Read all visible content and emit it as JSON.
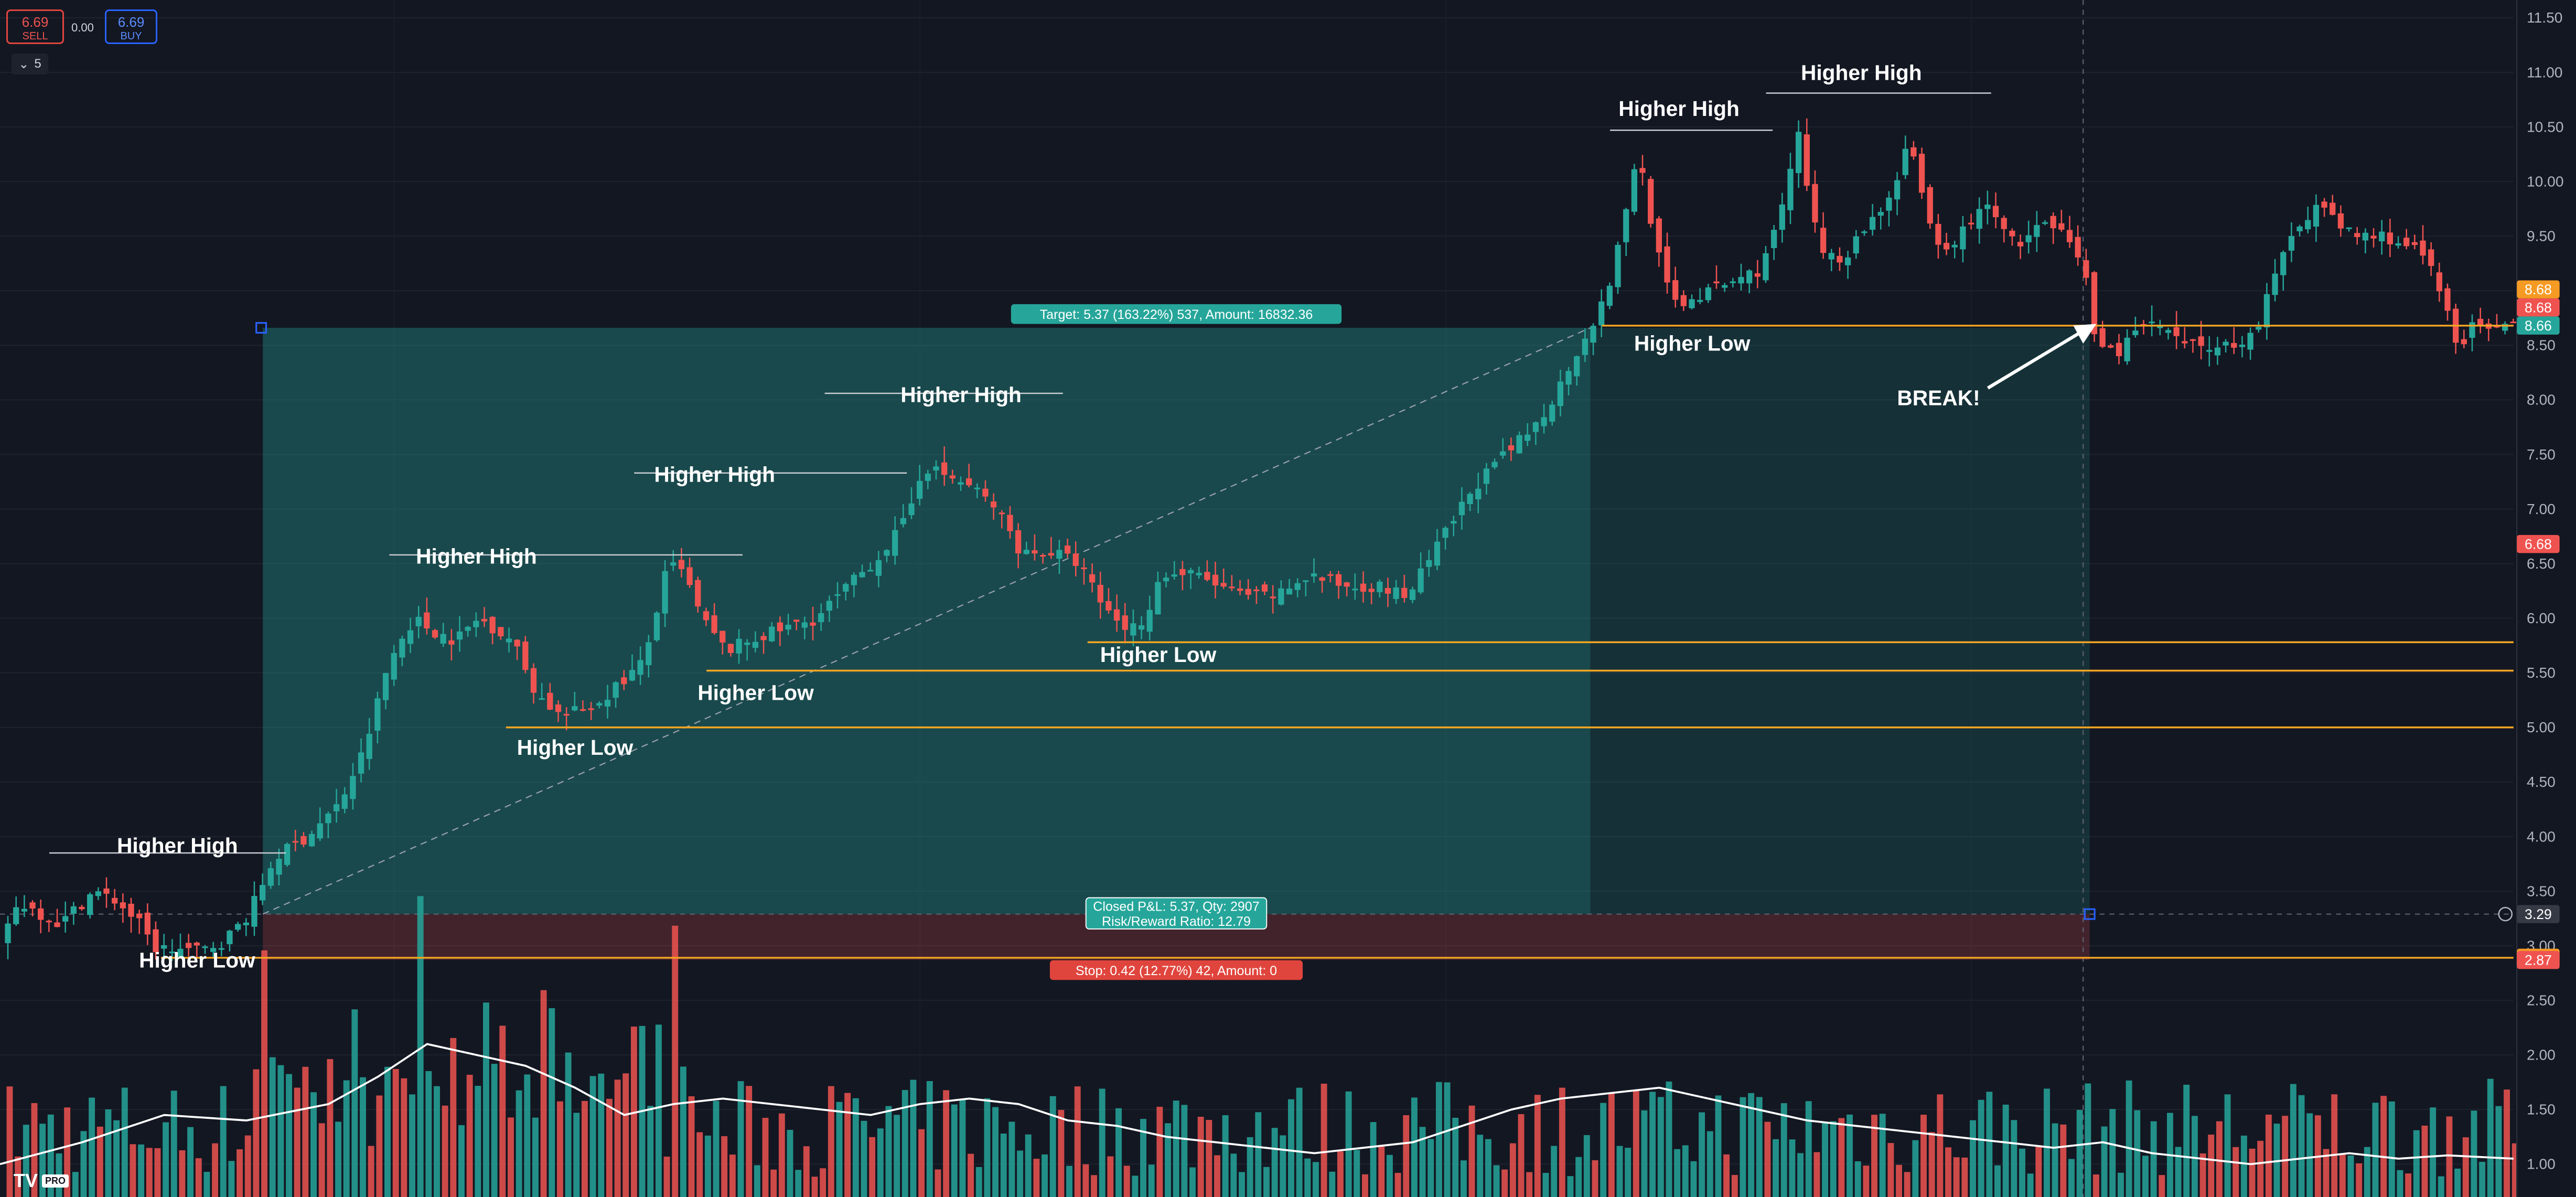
{
  "trading": {
    "sell_price": "6.69",
    "sell_label": "SELL",
    "buy_price": "6.69",
    "buy_label": "BUY",
    "spread": "0.00",
    "indicator_count": "5"
  },
  "logo_text": "TV",
  "logo_badge": "PRO",
  "colors": {
    "up": "#26a69a",
    "down": "#ef5350",
    "target_zone": "#26a69a",
    "stop_zone": "#ef5350",
    "level_line": "#f5a623",
    "background": "#131722"
  },
  "chart_data": {
    "type": "candlestick",
    "title": "",
    "xlabel": "",
    "ylabel": "",
    "ylim": [
      0.85,
      11.55
    ],
    "y_axis_ticks": [
      1.0,
      1.5,
      2.0,
      2.5,
      3.0,
      3.5,
      4.0,
      4.5,
      5.0,
      5.5,
      6.0,
      6.5,
      7.0,
      7.5,
      8.0,
      8.5,
      9.0,
      9.5,
      10.0,
      10.5,
      11.0,
      11.5
    ],
    "y_axis_tick_labels": [
      "1.00",
      "1.50",
      "2.00",
      "2.50",
      "3.00",
      "3.50",
      "4.00",
      "4.50",
      "5.00",
      "5.50",
      "6.00",
      "6.50",
      "7.00",
      "7.50",
      "8.00",
      "8.50",
      "9.00",
      "9.50",
      "10.00",
      "10.50",
      "11.00",
      "11.50"
    ],
    "grid": true,
    "price_path": [
      [
        0,
        3.0
      ],
      [
        15,
        3.4
      ],
      [
        40,
        3.2
      ],
      [
        60,
        3.5
      ],
      [
        75,
        3.4
      ],
      [
        88,
        3.2
      ],
      [
        97,
        2.98
      ],
      [
        110,
        2.97
      ],
      [
        125,
        2.95
      ],
      [
        140,
        3.05
      ],
      [
        155,
        3.3
      ],
      [
        170,
        3.8
      ],
      [
        190,
        4.0
      ],
      [
        210,
        4.3
      ],
      [
        225,
        4.8
      ],
      [
        240,
        5.6
      ],
      [
        255,
        6.0
      ],
      [
        265,
        5.9
      ],
      [
        280,
        5.8
      ],
      [
        295,
        6.0
      ],
      [
        315,
        5.8
      ],
      [
        330,
        5.3
      ],
      [
        345,
        5.1
      ],
      [
        365,
        5.2
      ],
      [
        380,
        5.4
      ],
      [
        395,
        5.6
      ],
      [
        410,
        6.5
      ],
      [
        420,
        6.4
      ],
      [
        430,
        6.0
      ],
      [
        445,
        5.7
      ],
      [
        460,
        5.8
      ],
      [
        480,
        5.9
      ],
      [
        500,
        6.0
      ],
      [
        520,
        6.3
      ],
      [
        540,
        6.6
      ],
      [
        555,
        6.9
      ],
      [
        565,
        7.4
      ],
      [
        580,
        7.3
      ],
      [
        595,
        7.2
      ],
      [
        610,
        7.0
      ],
      [
        625,
        6.6
      ],
      [
        645,
        6.6
      ],
      [
        660,
        6.5
      ],
      [
        675,
        6.1
      ],
      [
        690,
        5.9
      ],
      [
        700,
        6.0
      ],
      [
        710,
        6.4
      ],
      [
        730,
        6.4
      ],
      [
        745,
        6.3
      ],
      [
        760,
        6.2
      ],
      [
        780,
        6.2
      ],
      [
        800,
        6.4
      ],
      [
        820,
        6.3
      ],
      [
        840,
        6.3
      ],
      [
        860,
        6.2
      ],
      [
        880,
        6.7
      ],
      [
        900,
        7.2
      ],
      [
        920,
        7.5
      ],
      [
        940,
        7.8
      ],
      [
        955,
        8.2
      ],
      [
        968,
        8.6
      ],
      [
        980,
        8.9
      ],
      [
        990,
        9.5
      ],
      [
        1000,
        10.3
      ],
      [
        1010,
        9.5
      ],
      [
        1020,
        8.9
      ],
      [
        1030,
        8.9
      ],
      [
        1045,
        9.0
      ],
      [
        1060,
        9.1
      ],
      [
        1075,
        9.2
      ],
      [
        1085,
        9.6
      ],
      [
        1098,
        10.4
      ],
      [
        1110,
        9.4
      ],
      [
        1125,
        9.3
      ],
      [
        1140,
        9.6
      ],
      [
        1155,
        9.9
      ],
      [
        1165,
        10.4
      ],
      [
        1175,
        9.7
      ],
      [
        1185,
        9.3
      ],
      [
        1200,
        9.6
      ],
      [
        1215,
        9.8
      ],
      [
        1230,
        9.4
      ],
      [
        1245,
        9.6
      ],
      [
        1260,
        9.5
      ],
      [
        1272,
        9.2
      ],
      [
        1278,
        8.6
      ],
      [
        1290,
        8.4
      ],
      [
        1300,
        8.6
      ],
      [
        1315,
        8.7
      ],
      [
        1330,
        8.5
      ],
      [
        1345,
        8.5
      ],
      [
        1360,
        8.5
      ],
      [
        1375,
        8.6
      ],
      [
        1385,
        9.0
      ],
      [
        1400,
        9.6
      ],
      [
        1415,
        9.8
      ],
      [
        1425,
        9.6
      ],
      [
        1440,
        9.5
      ],
      [
        1455,
        9.5
      ],
      [
        1470,
        9.4
      ],
      [
        1480,
        9.3
      ],
      [
        1490,
        8.9
      ],
      [
        1500,
        8.5
      ],
      [
        1510,
        8.7
      ],
      [
        1520,
        8.6
      ],
      [
        1530,
        8.66
      ]
    ],
    "moving_average_path": [
      [
        0,
        1.0
      ],
      [
        50,
        1.2
      ],
      [
        100,
        1.45
      ],
      [
        150,
        1.4
      ],
      [
        200,
        1.55
      ],
      [
        230,
        1.8
      ],
      [
        260,
        2.1
      ],
      [
        290,
        2.0
      ],
      [
        320,
        1.9
      ],
      [
        350,
        1.7
      ],
      [
        380,
        1.45
      ],
      [
        410,
        1.55
      ],
      [
        440,
        1.6
      ],
      [
        470,
        1.55
      ],
      [
        500,
        1.5
      ],
      [
        530,
        1.45
      ],
      [
        560,
        1.55
      ],
      [
        590,
        1.6
      ],
      [
        620,
        1.55
      ],
      [
        650,
        1.4
      ],
      [
        680,
        1.35
      ],
      [
        710,
        1.25
      ],
      [
        740,
        1.2
      ],
      [
        770,
        1.15
      ],
      [
        800,
        1.1
      ],
      [
        830,
        1.15
      ],
      [
        860,
        1.2
      ],
      [
        890,
        1.35
      ],
      [
        920,
        1.5
      ],
      [
        950,
        1.6
      ],
      [
        980,
        1.65
      ],
      [
        1010,
        1.7
      ],
      [
        1040,
        1.6
      ],
      [
        1070,
        1.5
      ],
      [
        1100,
        1.4
      ],
      [
        1130,
        1.35
      ],
      [
        1160,
        1.3
      ],
      [
        1190,
        1.25
      ],
      [
        1220,
        1.2
      ],
      [
        1250,
        1.15
      ],
      [
        1280,
        1.2
      ],
      [
        1310,
        1.1
      ],
      [
        1340,
        1.05
      ],
      [
        1370,
        1.0
      ],
      [
        1400,
        1.05
      ],
      [
        1430,
        1.1
      ],
      [
        1460,
        1.05
      ],
      [
        1490,
        1.08
      ],
      [
        1530,
        1.05
      ]
    ],
    "position": {
      "entry": 3.29,
      "target": 8.66,
      "stop": 2.87,
      "target_label": "Target: 5.37 (163.22%) 537, Amount: 16832.36",
      "closed_label": "Closed P&L: 5.37, Qty: 2907",
      "rr_label": "Risk/Reward Ratio: 12.79",
      "stop_label": "Stop: 0.42 (12.77%) 42, Amount: 0"
    },
    "horizontal_levels": [
      {
        "price": 8.68,
        "label": "8.68"
      },
      {
        "price": 5.78,
        "label": "5.78"
      },
      {
        "price": 5.52,
        "label": "5.52"
      },
      {
        "price": 5.0,
        "label": "5.00"
      },
      {
        "price": 2.89,
        "label": "2.89"
      }
    ],
    "price_tags": [
      {
        "price": 8.68,
        "label": "8.68",
        "color": "#f59b23"
      },
      {
        "price": 8.68,
        "label": "8.68",
        "color": "#ef5350"
      },
      {
        "price": 8.66,
        "label": "8.66",
        "color": "#26a69a"
      },
      {
        "price": 6.68,
        "label": "6.68",
        "color": "#ef5350"
      },
      {
        "price": 3.29,
        "label": "3.29",
        "color": "#363a45"
      },
      {
        "price": 2.89,
        "label": "2.89",
        "color": "#f59b23"
      },
      {
        "price": 2.87,
        "label": "2.87",
        "color": "#ef5350"
      }
    ],
    "annotations": [
      {
        "text": "Higher Low",
        "x": 120,
        "price": 2.8
      },
      {
        "text": "Higher High",
        "x": 108,
        "price": 3.85
      },
      {
        "text": "Higher High",
        "x": 290,
        "price": 6.5
      },
      {
        "text": "Higher Low",
        "x": 350,
        "price": 4.75
      },
      {
        "text": "Higher High",
        "x": 435,
        "price": 7.25
      },
      {
        "text": "Higher Low",
        "x": 460,
        "price": 5.25
      },
      {
        "text": "Higher High",
        "x": 585,
        "price": 7.98
      },
      {
        "text": "Higher Low",
        "x": 705,
        "price": 5.6
      },
      {
        "text": "Higher High",
        "x": 1022,
        "price": 10.6
      },
      {
        "text": "Higher High",
        "x": 1133,
        "price": 10.93
      },
      {
        "text": "Higher Low",
        "x": 1030,
        "price": 8.45
      },
      {
        "text": "BREAK!",
        "x": 1180,
        "price": 7.95
      }
    ]
  }
}
